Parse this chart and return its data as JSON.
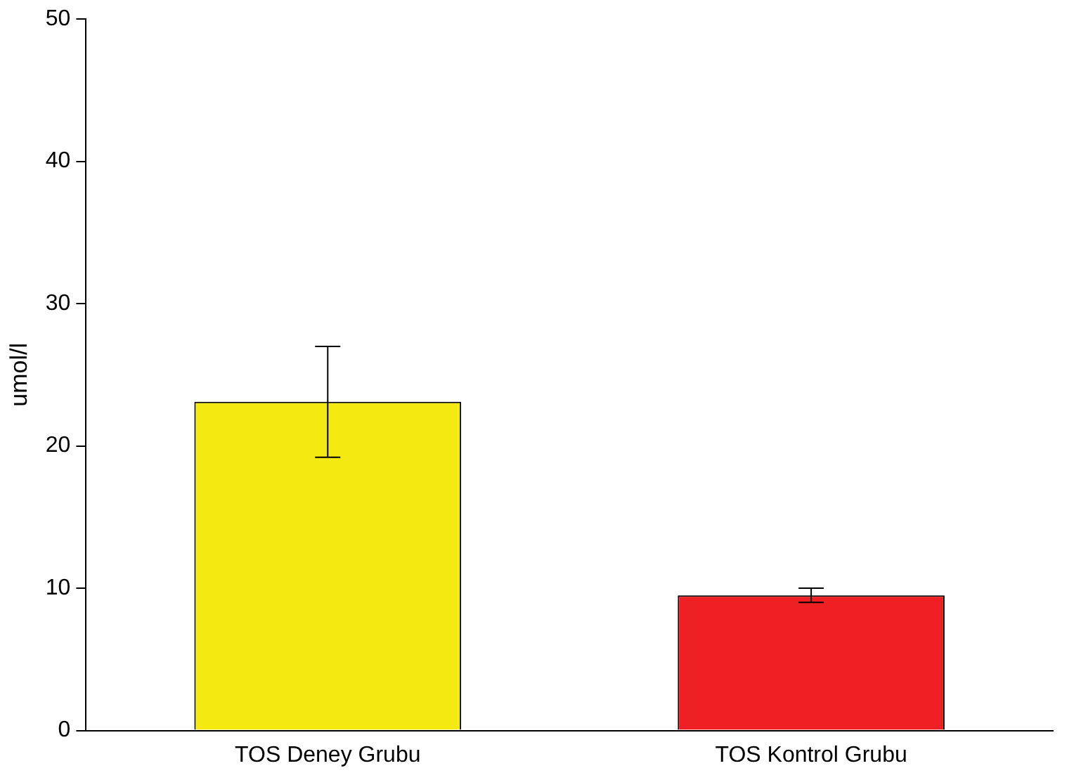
{
  "chart_data": {
    "type": "bar",
    "ylabel": "umol/l",
    "categories": [
      "TOS Deney Grubu",
      "TOS Kontrol Grubu"
    ],
    "values": [
      23.1,
      9.5
    ],
    "colors": [
      "#f4e911",
      "#ee2024"
    ],
    "errors": [
      3.9,
      0.5
    ],
    "ylim": [
      0,
      50
    ],
    "yticks": [
      0,
      10,
      20,
      30,
      40,
      50
    ],
    "grid": false,
    "legend": false
  }
}
